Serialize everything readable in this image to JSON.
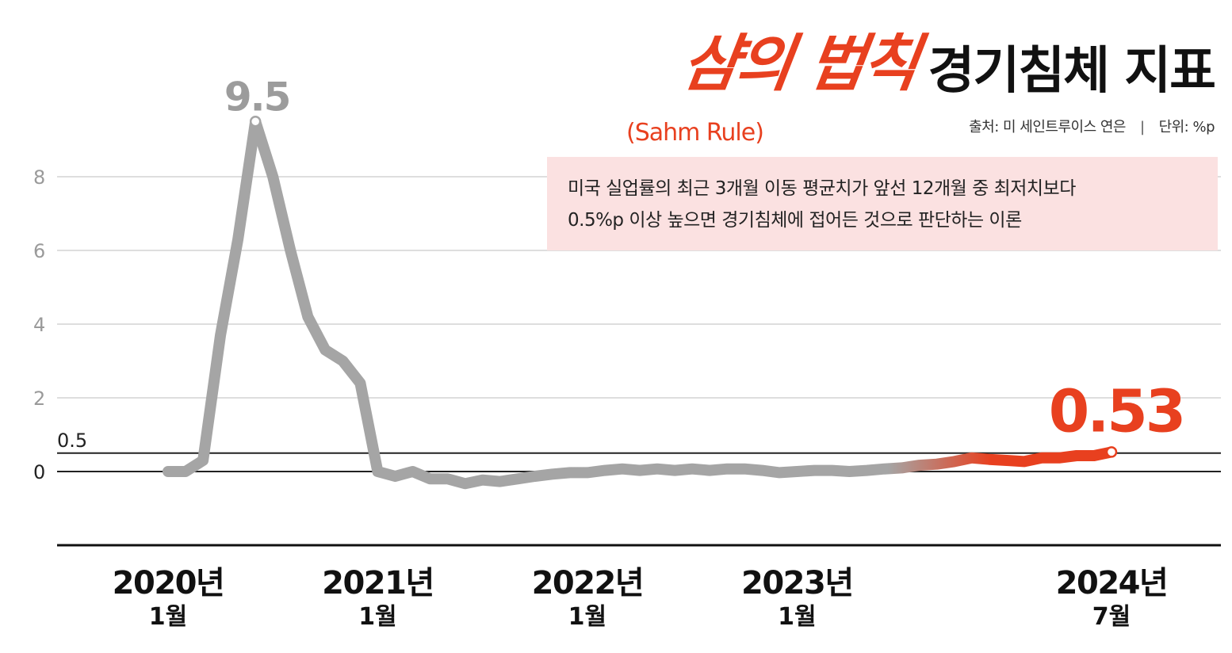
{
  "title": {
    "brush": "샴의 법칙",
    "main": "경기침체 지표",
    "english": "(Sahm Rule)"
  },
  "meta": {
    "source": "출처: 미 세인트루이스 연은",
    "unit": "단위: %p"
  },
  "definition": {
    "line1": "미국 실업률의 최근 3개월 이동 평균치가 앞선 12개월 중 최저치보다",
    "line2": "0.5%p 이상 높으면 경기침체에 접어든 것으로 판단하는 이론"
  },
  "colors": {
    "accent": "#e8401f",
    "line_gray": "#a5a5a5",
    "box_bg": "#fbe1e1"
  },
  "chart_data": {
    "type": "line",
    "y_ticks": [
      "0",
      "2",
      "4",
      "6",
      "8"
    ],
    "threshold": {
      "value": 0.5,
      "label": "0.5"
    },
    "ylim": [
      -2,
      10
    ],
    "x_ticks": [
      {
        "x": "2020-01",
        "year": "2020년",
        "month": "1월"
      },
      {
        "x": "2021-01",
        "year": "2021년",
        "month": "1월"
      },
      {
        "x": "2022-01",
        "year": "2022년",
        "month": "1월"
      },
      {
        "x": "2023-01",
        "year": "2023년",
        "month": "1월"
      },
      {
        "x": "2024-07",
        "year": "2024년",
        "month": "7월"
      }
    ],
    "series": [
      {
        "x": [
          "2020-01",
          "2020-02",
          "2020-03",
          "2020-04",
          "2020-05",
          "2020-06",
          "2020-07",
          "2020-08",
          "2020-09",
          "2020-10",
          "2020-11",
          "2020-12",
          "2021-01",
          "2021-02",
          "2021-03",
          "2021-04",
          "2021-05",
          "2021-06",
          "2021-07",
          "2021-08",
          "2021-09",
          "2021-10",
          "2021-11",
          "2021-12",
          "2022-01",
          "2022-02",
          "2022-03",
          "2022-04",
          "2022-05",
          "2022-06",
          "2022-07",
          "2022-08",
          "2022-09",
          "2022-10",
          "2022-11",
          "2022-12",
          "2023-01",
          "2023-02",
          "2023-03",
          "2023-04",
          "2023-05",
          "2023-06",
          "2023-07",
          "2023-08",
          "2023-09",
          "2023-10",
          "2023-11",
          "2023-12",
          "2024-01",
          "2024-02",
          "2024-03",
          "2024-04",
          "2024-05",
          "2024-06",
          "2024-07"
        ],
        "values": [
          0.0,
          0.0,
          0.3,
          3.7,
          6.3,
          9.5,
          8.0,
          6.0,
          4.2,
          3.3,
          3.0,
          2.4,
          0.0,
          -0.13,
          0.0,
          -0.2,
          -0.2,
          -0.33,
          -0.23,
          -0.27,
          -0.2,
          -0.13,
          -0.07,
          -0.03,
          -0.03,
          0.03,
          0.07,
          0.03,
          0.07,
          0.03,
          0.07,
          0.03,
          0.07,
          0.07,
          0.03,
          -0.03,
          0.0,
          0.03,
          0.03,
          0.0,
          0.03,
          0.07,
          0.1,
          0.17,
          0.2,
          0.27,
          0.37,
          0.33,
          0.3,
          0.27,
          0.37,
          0.37,
          0.43,
          0.43,
          0.53
        ]
      }
    ],
    "annotations": [
      {
        "x": "2020-06",
        "value": 9.5,
        "label": "9.5"
      },
      {
        "x": "2024-07",
        "value": 0.53,
        "label": "0.53"
      }
    ]
  }
}
